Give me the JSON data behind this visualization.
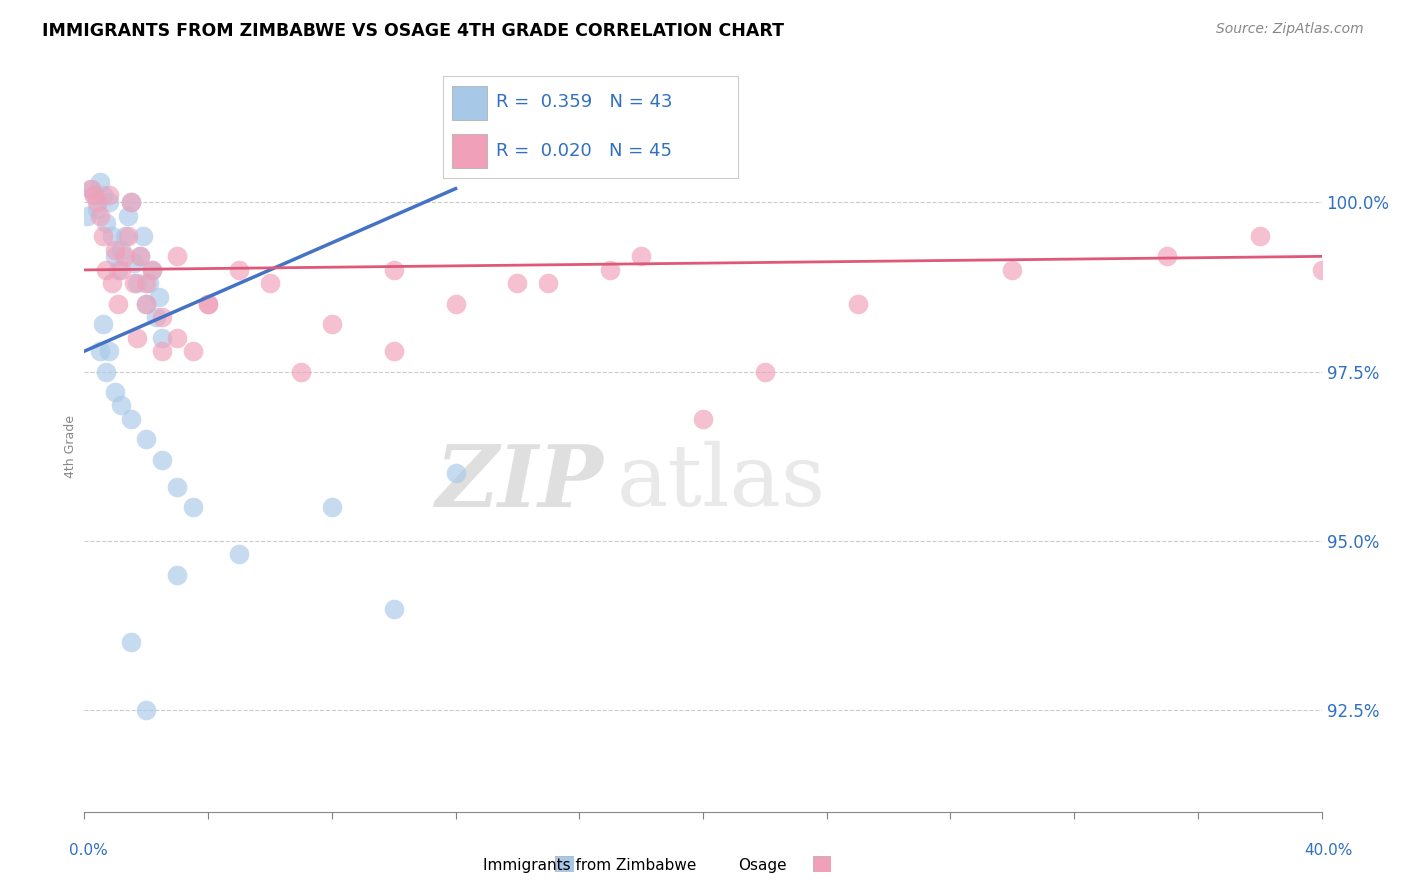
{
  "title": "IMMIGRANTS FROM ZIMBABWE VS OSAGE 4TH GRADE CORRELATION CHART",
  "source_text": "Source: ZipAtlas.com",
  "ylabel": "4th Grade",
  "xlim": [
    0.0,
    40.0
  ],
  "ylim": [
    91.0,
    101.8
  ],
  "ytick_positions": [
    92.5,
    95.0,
    97.5,
    100.0
  ],
  "ytick_labels": [
    "92.5%",
    "95.0%",
    "97.5%",
    "100.0%"
  ],
  "watermark_zip": "ZIP",
  "watermark_atlas": "atlas",
  "blue_color": "#a8c8e8",
  "pink_color": "#f0a0b8",
  "blue_line_color": "#4472c4",
  "pink_line_color": "#e05878",
  "blue_scatter_x": [
    0.1,
    0.2,
    0.3,
    0.4,
    0.5,
    0.6,
    0.7,
    0.8,
    0.9,
    1.0,
    1.1,
    1.2,
    1.3,
    1.4,
    1.5,
    1.6,
    1.7,
    1.8,
    1.9,
    2.0,
    2.1,
    2.2,
    2.3,
    2.4,
    2.5,
    0.5,
    0.6,
    0.7,
    0.8,
    1.0,
    1.2,
    1.5,
    2.0,
    2.5,
    3.0,
    3.5,
    1.5,
    2.0,
    3.0,
    5.0,
    8.0,
    10.0,
    12.0
  ],
  "blue_scatter_y": [
    99.8,
    100.2,
    100.1,
    99.9,
    100.3,
    100.1,
    99.7,
    100.0,
    99.5,
    99.2,
    99.0,
    99.3,
    99.5,
    99.8,
    100.0,
    99.1,
    98.8,
    99.2,
    99.5,
    98.5,
    98.8,
    99.0,
    98.3,
    98.6,
    98.0,
    97.8,
    98.2,
    97.5,
    97.8,
    97.2,
    97.0,
    96.8,
    96.5,
    96.2,
    95.8,
    95.5,
    93.5,
    92.5,
    94.5,
    94.8,
    95.5,
    94.0,
    96.0
  ],
  "pink_scatter_x": [
    0.2,
    0.4,
    0.5,
    0.6,
    0.8,
    1.0,
    1.2,
    1.4,
    1.5,
    1.6,
    1.8,
    2.0,
    2.2,
    2.5,
    3.0,
    3.5,
    4.0,
    5.0,
    6.0,
    8.0,
    10.0,
    12.0,
    15.0,
    18.0,
    22.0,
    0.3,
    0.7,
    0.9,
    1.1,
    1.3,
    1.7,
    2.0,
    2.5,
    3.0,
    4.0,
    7.0,
    10.0,
    14.0,
    17.0,
    25.0,
    30.0,
    35.0,
    38.0,
    40.0,
    20.0
  ],
  "pink_scatter_y": [
    100.2,
    100.0,
    99.8,
    99.5,
    100.1,
    99.3,
    99.0,
    99.5,
    100.0,
    98.8,
    99.2,
    98.5,
    99.0,
    98.3,
    99.2,
    97.8,
    98.5,
    99.0,
    98.8,
    98.2,
    99.0,
    98.5,
    98.8,
    99.2,
    97.5,
    100.1,
    99.0,
    98.8,
    98.5,
    99.2,
    98.0,
    98.8,
    97.8,
    98.0,
    98.5,
    97.5,
    97.8,
    98.8,
    99.0,
    98.5,
    99.0,
    99.2,
    99.5,
    99.0,
    96.8
  ],
  "blue_trend_x": [
    0.0,
    12.0
  ],
  "blue_trend_y": [
    97.8,
    100.2
  ],
  "pink_trend_x": [
    0.0,
    40.0
  ],
  "pink_trend_y": [
    99.0,
    99.2
  ],
  "legend_line1": "R =  0.359   N = 43",
  "legend_line2": "R =  0.020   N = 45",
  "bottom_legend": [
    "Immigrants from Zimbabwe",
    "Osage"
  ]
}
